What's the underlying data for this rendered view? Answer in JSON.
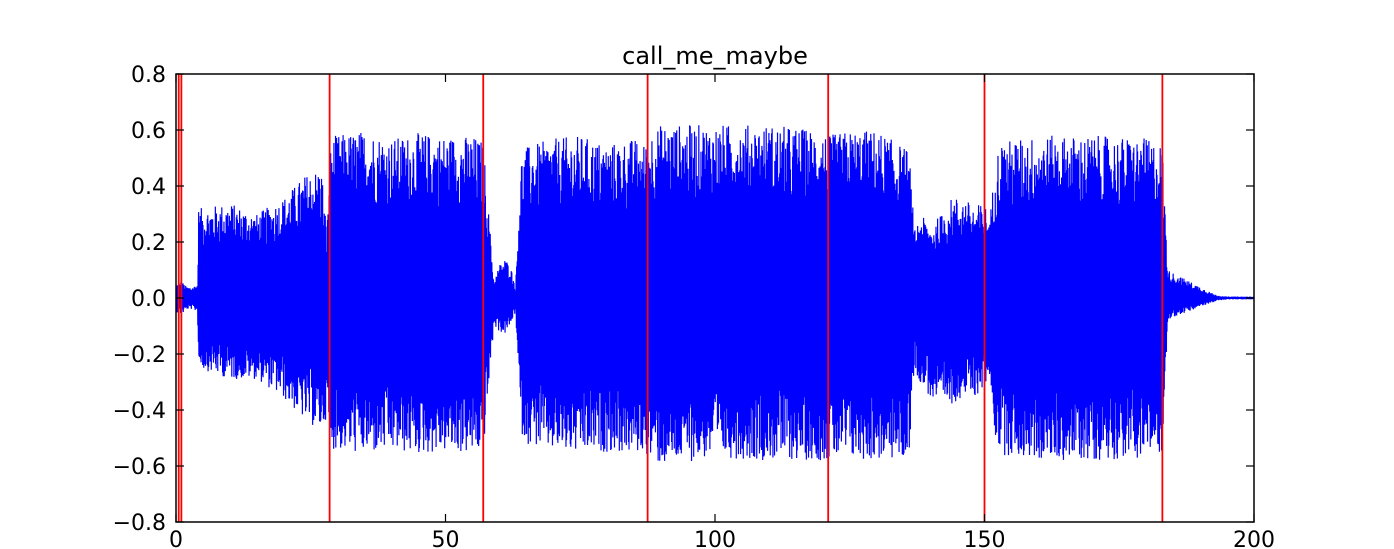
{
  "chart_data": {
    "type": "line",
    "title": "call_me_maybe",
    "xlabel": "",
    "ylabel": "",
    "xlim": [
      0,
      200
    ],
    "ylim": [
      -0.8,
      0.8
    ],
    "xticks": [
      0,
      50,
      100,
      150,
      200
    ],
    "xtick_labels": [
      "0",
      "50",
      "100",
      "150",
      "200"
    ],
    "yticks": [
      0.8,
      0.6,
      0.4,
      0.2,
      0.0,
      -0.2,
      -0.4,
      -0.6,
      -0.8
    ],
    "ytick_labels": [
      "0.8",
      "0.6",
      "0.4",
      "0.2",
      "0.0",
      "−0.2",
      "−0.4",
      "−0.6",
      "−0.8"
    ],
    "grid": false,
    "legend": "none",
    "series": [
      {
        "color": "#0000ff",
        "envelope": {
          "x": [
            0,
            1,
            2,
            3,
            4,
            4.2,
            10,
            15,
            20,
            24,
            27,
            28,
            28.5,
            29,
            35,
            40,
            45,
            50,
            55,
            57,
            59,
            60,
            61,
            62,
            63,
            64,
            65,
            70,
            75,
            80,
            85,
            87,
            88,
            90,
            100,
            110,
            120,
            121,
            125,
            130,
            135,
            136,
            137,
            138,
            140,
            142,
            144,
            146,
            148,
            150,
            151,
            152,
            153,
            160,
            170,
            180,
            183,
            184,
            186,
            188,
            190,
            192,
            193,
            195,
            200
          ],
          "upper": [
            0.05,
            0.06,
            0.04,
            0.04,
            0.05,
            0.32,
            0.34,
            0.3,
            0.36,
            0.44,
            0.47,
            0.24,
            0.5,
            0.58,
            0.6,
            0.57,
            0.59,
            0.58,
            0.58,
            0.56,
            0.06,
            0.12,
            0.14,
            0.12,
            0.04,
            0.5,
            0.54,
            0.57,
            0.58,
            0.55,
            0.57,
            0.55,
            0.6,
            0.62,
            0.62,
            0.62,
            0.6,
            0.58,
            0.6,
            0.6,
            0.54,
            0.53,
            0.24,
            0.3,
            0.26,
            0.3,
            0.36,
            0.36,
            0.33,
            0.34,
            0.28,
            0.5,
            0.56,
            0.58,
            0.58,
            0.57,
            0.55,
            0.1,
            0.08,
            0.06,
            0.04,
            0.02,
            0.01,
            0.005,
            0.005
          ],
          "lower": [
            -0.05,
            -0.06,
            -0.04,
            -0.04,
            -0.05,
            -0.25,
            -0.29,
            -0.29,
            -0.36,
            -0.44,
            -0.48,
            -0.42,
            -0.52,
            -0.54,
            -0.56,
            -0.55,
            -0.56,
            -0.55,
            -0.56,
            -0.55,
            -0.1,
            -0.12,
            -0.13,
            -0.1,
            -0.05,
            -0.48,
            -0.52,
            -0.55,
            -0.56,
            -0.55,
            -0.56,
            -0.55,
            -0.58,
            -0.6,
            -0.57,
            -0.58,
            -0.58,
            -0.58,
            -0.58,
            -0.58,
            -0.58,
            -0.56,
            -0.25,
            -0.3,
            -0.36,
            -0.4,
            -0.38,
            -0.35,
            -0.36,
            -0.32,
            -0.28,
            -0.5,
            -0.56,
            -0.58,
            -0.58,
            -0.57,
            -0.55,
            -0.08,
            -0.06,
            -0.05,
            -0.03,
            -0.02,
            -0.01,
            -0.005,
            -0.005
          ]
        }
      }
    ],
    "vlines": {
      "color": "#ff0000",
      "x": [
        0.5,
        1.0,
        28.5,
        57.0,
        87.5,
        121.0,
        150.0,
        183.0
      ]
    }
  }
}
